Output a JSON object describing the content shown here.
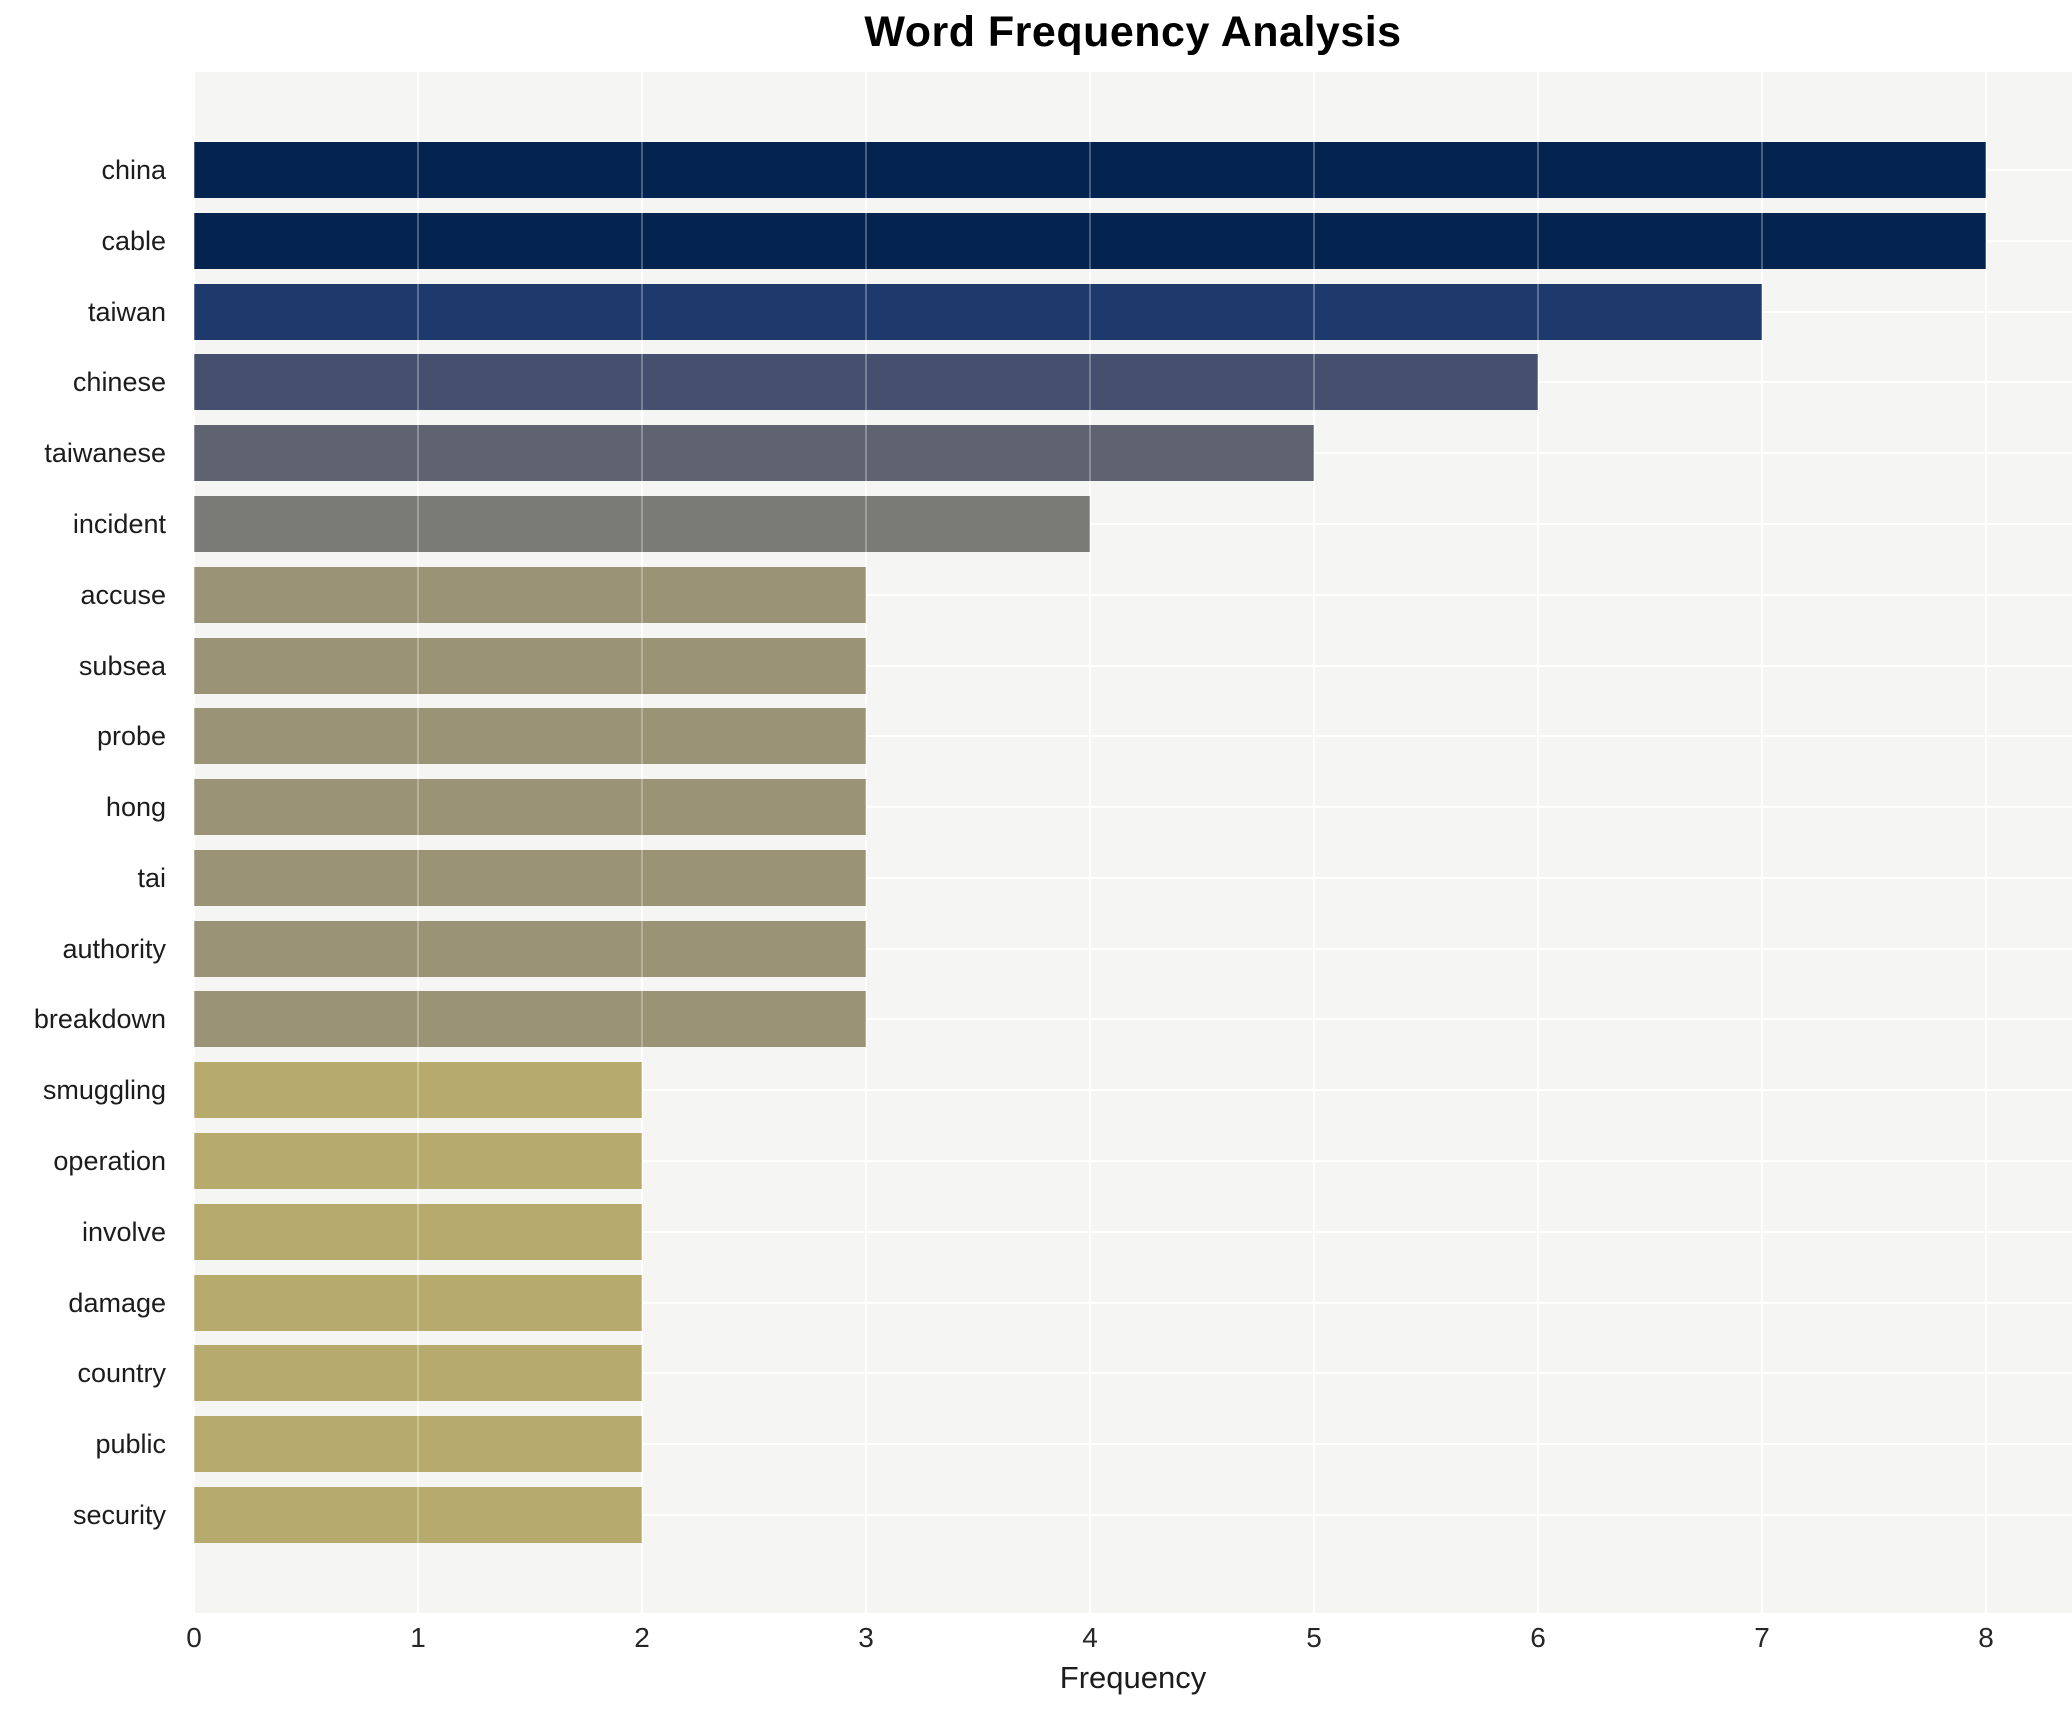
{
  "title": "Word Frequency Analysis",
  "chart_data": {
    "type": "bar",
    "orientation": "horizontal",
    "title": "Word Frequency Analysis",
    "xlabel": "Frequency",
    "ylabel": "",
    "categories": [
      "china",
      "cable",
      "taiwan",
      "chinese",
      "taiwanese",
      "incident",
      "accuse",
      "subsea",
      "probe",
      "hong",
      "tai",
      "authority",
      "breakdown",
      "smuggling",
      "operation",
      "involve",
      "damage",
      "country",
      "public",
      "security"
    ],
    "values": [
      8,
      8,
      7,
      6,
      5,
      4,
      3,
      3,
      3,
      3,
      3,
      3,
      3,
      2,
      2,
      2,
      2,
      2,
      2,
      2
    ],
    "bar_colors": [
      "#04234f",
      "#04234f",
      "#1e3a6d",
      "#45506e",
      "#5f6370",
      "#7a7a77",
      "#9a9375",
      "#9a9375",
      "#9a9375",
      "#9a9375",
      "#9a9375",
      "#9a9375",
      "#9a9375",
      "#b6aa6c",
      "#b6aa6c",
      "#b6aa6c",
      "#b6aa6c",
      "#b6aa6c",
      "#b6aa6c",
      "#b6aa6c"
    ],
    "x_ticks": [
      0,
      1,
      2,
      3,
      4,
      5,
      6,
      7,
      8
    ],
    "xlim": [
      0,
      8.38
    ],
    "grid": true,
    "legend_position": "none",
    "plot_background_color": "#f5f5f3",
    "gridline_color": "#ffffff"
  }
}
